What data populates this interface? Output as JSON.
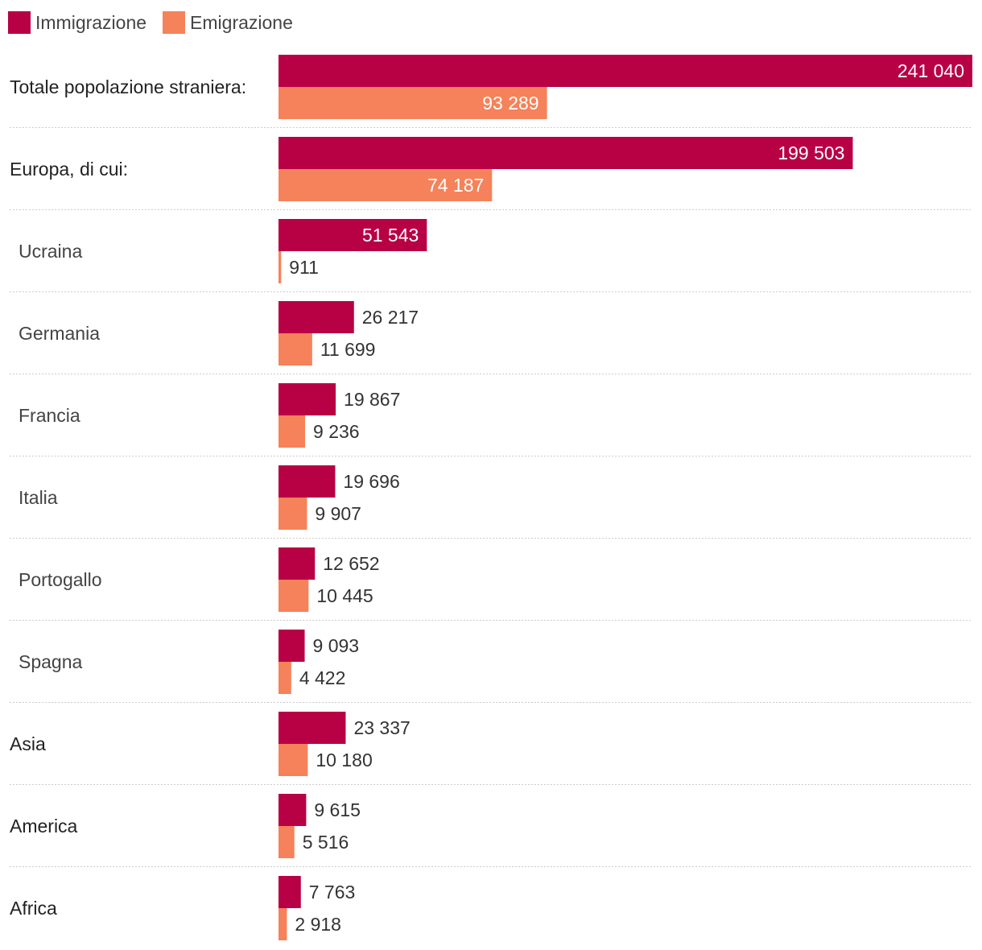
{
  "legend": {
    "immigration_label": "Immigrazione",
    "emigration_label": "Emigrazione"
  },
  "colors": {
    "immigration": "#b80045",
    "emigration": "#f5825a",
    "separator": "#cccccc",
    "text": "#333333"
  },
  "chart_data": {
    "type": "bar",
    "orientation": "horizontal",
    "grid": false,
    "legend_position": "top-left",
    "xlim": [
      0,
      241040
    ],
    "categories": [
      "Totale popolazione straniera:",
      "Europa, di cui:",
      "Ucraina",
      "Germania",
      "Francia",
      "Italia",
      "Portogallo",
      "Spagna",
      "Asia",
      "America",
      "Africa"
    ],
    "indented": [
      false,
      false,
      true,
      true,
      true,
      true,
      true,
      true,
      false,
      false,
      false
    ],
    "series": [
      {
        "name": "Immigrazione",
        "values": [
          241040,
          199503,
          51543,
          26217,
          19867,
          19696,
          12652,
          9093,
          23337,
          9615,
          7763
        ],
        "labels": [
          "241 040",
          "199 503",
          "51 543",
          "26 217",
          "19 867",
          "19 696",
          "12 652",
          "9 093",
          "23 337",
          "9 615",
          "7 763"
        ]
      },
      {
        "name": "Emigrazione",
        "values": [
          93289,
          74187,
          911,
          11699,
          9236,
          9907,
          10445,
          4422,
          10180,
          5516,
          2918
        ],
        "labels": [
          "93 289",
          "74 187",
          "911",
          "11 699",
          "9 236",
          "9 907",
          "10 445",
          "4 422",
          "10 180",
          "5 516",
          "2 918"
        ]
      }
    ]
  }
}
